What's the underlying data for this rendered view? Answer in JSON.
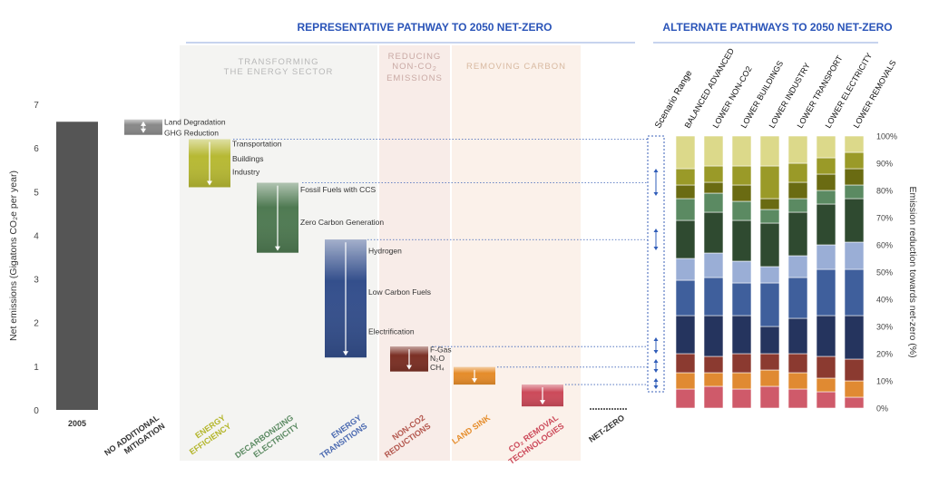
{
  "chart_data": {
    "type": "bar",
    "header_main": "REPRESENTATIVE PATHWAY TO 2050 NET-ZERO",
    "header_alt": "ALTERNATE PATHWAYS TO 2050 NET-ZERO",
    "sections": [
      "TRANSFORMING THE ENERGY SECTOR",
      "REDUCING NON-CO₂ EMISSIONS",
      "REMOVING CARBON"
    ],
    "ylabel_left": "Net emissions (Gigatons CO₂e per year)",
    "ylabel_right": "Emission reduction towards net-zero (%)",
    "ylim_left": [
      0,
      7
    ],
    "yticks_left": [
      "0",
      "1",
      "2",
      "3",
      "4",
      "5",
      "6",
      "7"
    ],
    "ylim_right": [
      0,
      100
    ],
    "yticks_right": [
      "0%",
      "10%",
      "20%",
      "30%",
      "40%",
      "50%",
      "60%",
      "70%",
      "80%",
      "90%",
      "100%"
    ],
    "waterfall": [
      {
        "category": "2005",
        "kind": "total",
        "top": 6.6,
        "bottom": 0,
        "color": "#555555"
      },
      {
        "category": "NO ADDITIONAL MITIGATION",
        "kind": "change",
        "top": 6.65,
        "bottom": 6.3,
        "color": "#888888",
        "labels": [
          {
            "text": "Land Degradation",
            "y": 6.6
          },
          {
            "text": "GHG Reduction",
            "y": 6.35
          }
        ]
      },
      {
        "category": "ENERGY EFFICIENCY",
        "kind": "change",
        "top": 6.2,
        "bottom": 5.1,
        "color": "#b7b934",
        "labels": [
          {
            "text": "Transportation",
            "y": 6.1
          },
          {
            "text": "Buildings",
            "y": 5.75
          },
          {
            "text": "Industry",
            "y": 5.45
          }
        ]
      },
      {
        "category": "DECARBONIZING ELECTRICITY",
        "kind": "change",
        "top": 5.2,
        "bottom": 3.6,
        "color": "#4f7a52",
        "labels": [
          {
            "text": "Fossil Fuels with CCS",
            "y": 5.05
          },
          {
            "text": "Zero Carbon Generation",
            "y": 4.3
          }
        ]
      },
      {
        "category": "ENERGY TRANSITIONS",
        "kind": "change",
        "top": 3.9,
        "bottom": 1.2,
        "color": "#344f8c",
        "labels": [
          {
            "text": "Hydrogen",
            "y": 3.65
          },
          {
            "text": "Low Carbon Fuels",
            "y": 2.7
          },
          {
            "text": "Electrification",
            "y": 1.8
          }
        ]
      },
      {
        "category": "NON-CO2 REDUCTIONS",
        "kind": "change",
        "top": 1.45,
        "bottom": 0.88,
        "color": "#7b3025",
        "labels": [
          {
            "text": "F-Gas",
            "y": 1.38
          },
          {
            "text": "N₂O",
            "y": 1.18
          },
          {
            "text": "CH₄",
            "y": 0.98
          }
        ]
      },
      {
        "category": "LAND SINK",
        "kind": "change",
        "top": 0.98,
        "bottom": 0.58,
        "color": "#e58c2a",
        "labels": []
      },
      {
        "category": "CO₂ REMOVAL TECHNOLOGIES",
        "kind": "change",
        "top": 0.58,
        "bottom": 0.08,
        "color": "#cc4a5a",
        "labels": []
      },
      {
        "category": "NET-ZERO",
        "kind": "total",
        "top": 0.05,
        "bottom": 0,
        "color": "#333333"
      }
    ],
    "segments": [
      {
        "name": "CO2 Removal Technologies",
        "color": "#cf5a6a"
      },
      {
        "name": "Land Sink",
        "color": "#e08a32"
      },
      {
        "name": "Non-CO2 Reductions",
        "color": "#8b3a30"
      },
      {
        "name": "Electrification",
        "color": "#25345e"
      },
      {
        "name": "Low Carbon Fuels",
        "color": "#3f5f9c"
      },
      {
        "name": "Hydrogen",
        "color": "#9aaed6"
      },
      {
        "name": "Zero Carbon Generation",
        "color": "#2f4a30"
      },
      {
        "name": "Fossil Fuels with CCS",
        "color": "#5b8a62"
      },
      {
        "name": "Industry",
        "color": "#6a6b12"
      },
      {
        "name": "Buildings",
        "color": "#9a9a28"
      },
      {
        "name": "Transportation",
        "color": "#dcd98a"
      }
    ],
    "scenario_range": {
      "name": "Scenario Range",
      "ranges": [
        [
          78,
          88
        ],
        [
          58,
          66
        ],
        [
          20,
          26
        ],
        [
          13,
          18
        ],
        [
          7,
          11
        ]
      ]
    },
    "alternate_pathways": [
      {
        "name": "BALANCED ADVANCED",
        "values": [
          7,
          6,
          7,
          14,
          13,
          8,
          14,
          8,
          5,
          6,
          12
        ]
      },
      {
        "name": "LOWER NON-CO2",
        "values": [
          8,
          5,
          6,
          15,
          14,
          9,
          15,
          7,
          4,
          6,
          11
        ]
      },
      {
        "name": "LOWER BUILDINGS",
        "values": [
          7,
          6,
          7,
          14,
          12,
          8,
          15,
          7,
          6,
          7,
          11
        ]
      },
      {
        "name": "LOWER INDUSTRY",
        "values": [
          8,
          6,
          6,
          10,
          16,
          6,
          16,
          5,
          4,
          12,
          11
        ]
      },
      {
        "name": "LOWER TRANSPORT",
        "values": [
          7,
          6,
          7,
          13,
          15,
          8,
          16,
          5,
          6,
          7,
          10
        ]
      },
      {
        "name": "LOWER ELECTRICITY",
        "values": [
          6,
          5,
          8,
          15,
          17,
          9,
          15,
          5,
          6,
          6,
          8
        ]
      },
      {
        "name": "LOWER REMOVALS",
        "values": [
          4,
          6,
          8,
          16,
          17,
          10,
          16,
          5,
          6,
          6,
          6
        ]
      }
    ]
  }
}
